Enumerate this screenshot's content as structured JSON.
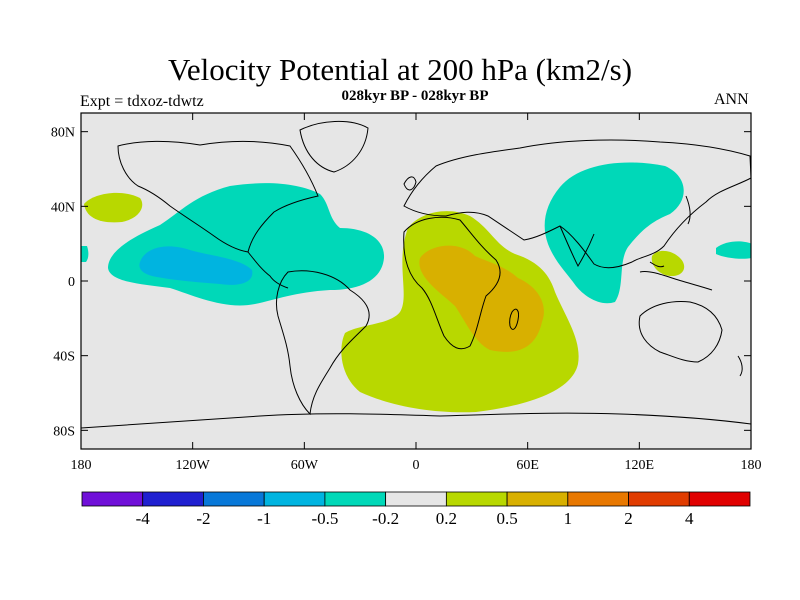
{
  "header": {
    "title": "Velocity Potential at 200 hPa (km2/s)",
    "subtitle": "028kyr BP - 028kyr BP",
    "left_label": "Expt = tdxoz-tdwtz",
    "right_label": "ANN"
  },
  "map": {
    "projection": "cylindrical-equidistant",
    "lon_range": [
      -180,
      180
    ],
    "lat_range": [
      -90,
      90
    ],
    "lat_ticks": [
      {
        "lat": 80,
        "label": "80N"
      },
      {
        "lat": 40,
        "label": "40N"
      },
      {
        "lat": 0,
        "label": "0"
      },
      {
        "lat": -40,
        "label": "40S"
      },
      {
        "lat": -80,
        "label": "80S"
      }
    ],
    "lon_ticks": [
      {
        "lon": -180,
        "label": "180"
      },
      {
        "lon": -120,
        "label": "120W"
      },
      {
        "lon": -60,
        "label": "60W"
      },
      {
        "lon": 0,
        "label": "0"
      },
      {
        "lon": 60,
        "label": "60E"
      },
      {
        "lon": 120,
        "label": "120E"
      },
      {
        "lon": 180,
        "label": "180"
      }
    ],
    "background_color": "#e6e6e6",
    "coastline_color": "#000000"
  },
  "colorbar": {
    "colors": [
      "#7010d8",
      "#2020d0",
      "#0878d8",
      "#00b4e0",
      "#00d8b8",
      "#e6e6e6",
      "#b8d800",
      "#d8b000",
      "#e87800",
      "#e03c00",
      "#e00000"
    ],
    "labels": [
      "-4",
      "-2",
      "-1",
      "-0.5",
      "-0.2",
      "0.2",
      "0.5",
      "1",
      "2",
      "4"
    ]
  }
}
